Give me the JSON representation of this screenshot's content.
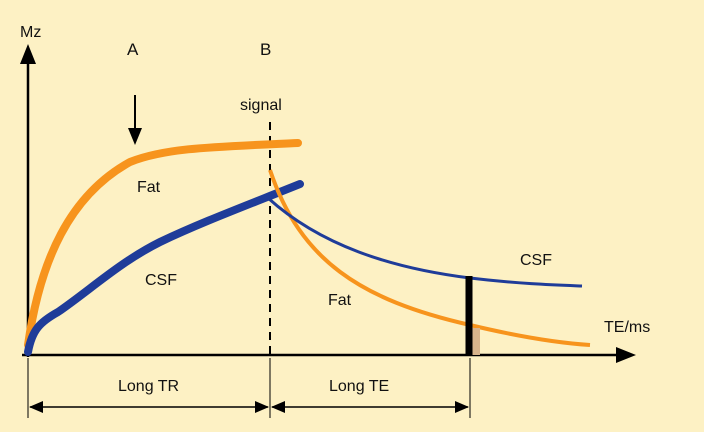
{
  "axes": {
    "y_label": "Mz",
    "x_label": "TE/ms"
  },
  "markers": {
    "a_label": "A",
    "b_label": "B",
    "signal_label": "signal"
  },
  "curves": {
    "fat_recovery_label": "Fat",
    "csf_recovery_label": "CSF",
    "csf_decay_label": "CSF",
    "fat_decay_label": "Fat"
  },
  "intervals": {
    "long_tr_label": "Long TR",
    "long_te_label": "Long TE"
  },
  "colors": {
    "background": "#fdf1c4",
    "fat": "#f7941d",
    "csf": "#1f3c99",
    "axis": "#000000",
    "signal_bar": "#000000",
    "fat_residual": "#d8b48c"
  }
}
